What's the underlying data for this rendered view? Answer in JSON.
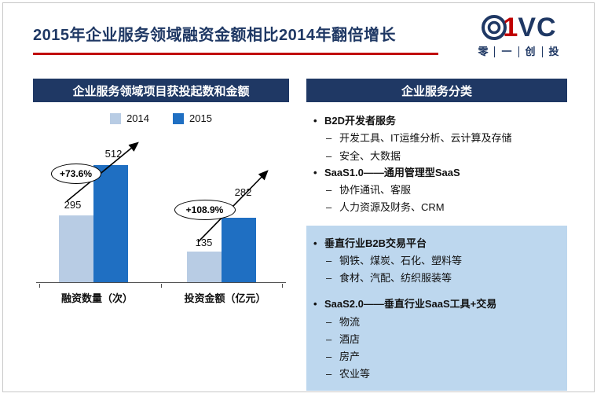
{
  "title": "2015年企业服务领域融资金额相比2014年翻倍增长",
  "logo": {
    "one": "1",
    "vc": "VC",
    "subtitle": [
      "零",
      "一",
      "创",
      "投"
    ]
  },
  "left_panel": {
    "header": "企业服务领域项目获投起数和金额"
  },
  "chart_data": {
    "type": "bar",
    "title": "企业服务领域项目获投起数和金额",
    "categories": [
      "融资数量（次）",
      "投资金额（亿元）"
    ],
    "series": [
      {
        "name": "2014",
        "color": "#B8CCE4",
        "values": [
          295,
          135
        ]
      },
      {
        "name": "2015",
        "color": "#1F6FC2",
        "values": [
          512,
          282
        ]
      }
    ],
    "annotations": [
      {
        "text": "+73.6%",
        "target": "融资数量（次）"
      },
      {
        "text": "+108.9%",
        "target": "投资金额（亿元）"
      }
    ],
    "xlabel": "",
    "ylabel": "",
    "ylim": [
      0,
      560
    ],
    "grid": false,
    "legend_position": "top"
  },
  "right_panel": {
    "header": "企业服务分类",
    "sections": [
      {
        "highlighted": false,
        "items": [
          {
            "label": "B2D开发者服务",
            "children": [
              "开发工具、IT运维分析、云计算及存储",
              "安全、大数据"
            ]
          },
          {
            "label": "SaaS1.0——通用管理型SaaS",
            "children": [
              "协作通讯、客服",
              "人力资源及财务、CRM"
            ]
          }
        ]
      },
      {
        "highlighted": true,
        "items": [
          {
            "label": "垂直行业B2B交易平台",
            "children": [
              "钢铁、煤炭、石化、塑料等",
              "食材、汽配、纺织服装等"
            ]
          },
          {
            "label": "SaaS2.0——垂直行业SaaS工具+交易",
            "children": [
              "物流",
              "酒店",
              "房产",
              "农业等"
            ]
          }
        ]
      }
    ]
  },
  "colors": {
    "navy": "#1F3864",
    "red": "#C00000",
    "bar_2014": "#B8CCE4",
    "bar_2015": "#1F6FC2",
    "highlight_box_bg": "#BDD7EE"
  }
}
